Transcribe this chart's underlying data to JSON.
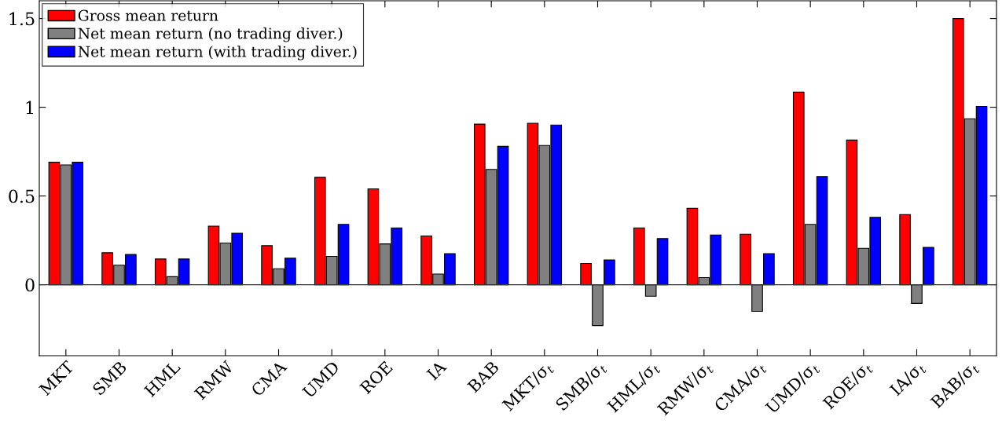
{
  "chart_data": {
    "type": "bar",
    "categories": [
      "MKT",
      "SMB",
      "HML",
      "RMW",
      "CMA",
      "UMD",
      "ROE",
      "IA",
      "BAB",
      "MKT/σ$_{t}$",
      "SMB/σ$_{t}$",
      "HML/σ$_{t}$",
      "RMW/σ$_{t}$",
      "CMA/σ$_{t}$",
      "UMD/σ$_{t}$",
      "ROE/σ$_{t}$",
      "IA/σ$_{t}$",
      "BAB/σ$_{t}$"
    ],
    "series": [
      {
        "name": "Gross mean return",
        "color": "#ff0000",
        "values": [
          0.69,
          0.18,
          0.145,
          0.33,
          0.22,
          0.605,
          0.54,
          0.275,
          0.905,
          0.91,
          0.12,
          0.32,
          0.43,
          0.285,
          1.085,
          0.815,
          0.395,
          1.5
        ]
      },
      {
        "name": "Net mean return (no trading diver.)",
        "color": "#808080",
        "values": [
          0.675,
          0.11,
          0.045,
          0.235,
          0.09,
          0.16,
          0.23,
          0.06,
          0.65,
          0.785,
          -0.23,
          -0.065,
          0.04,
          -0.15,
          0.34,
          0.205,
          -0.105,
          0.935
        ]
      },
      {
        "name": "Net mean return (with trading diver.)",
        "color": "#0000ff",
        "values": [
          0.69,
          0.17,
          0.145,
          0.29,
          0.15,
          0.34,
          0.32,
          0.175,
          0.78,
          0.9,
          0.14,
          0.26,
          0.28,
          0.175,
          0.61,
          0.38,
          0.21,
          1.005
        ]
      }
    ],
    "ylim": [
      -0.4,
      1.6
    ],
    "yticks": [
      0,
      0.5,
      1,
      1.5
    ],
    "legend": "top left"
  }
}
